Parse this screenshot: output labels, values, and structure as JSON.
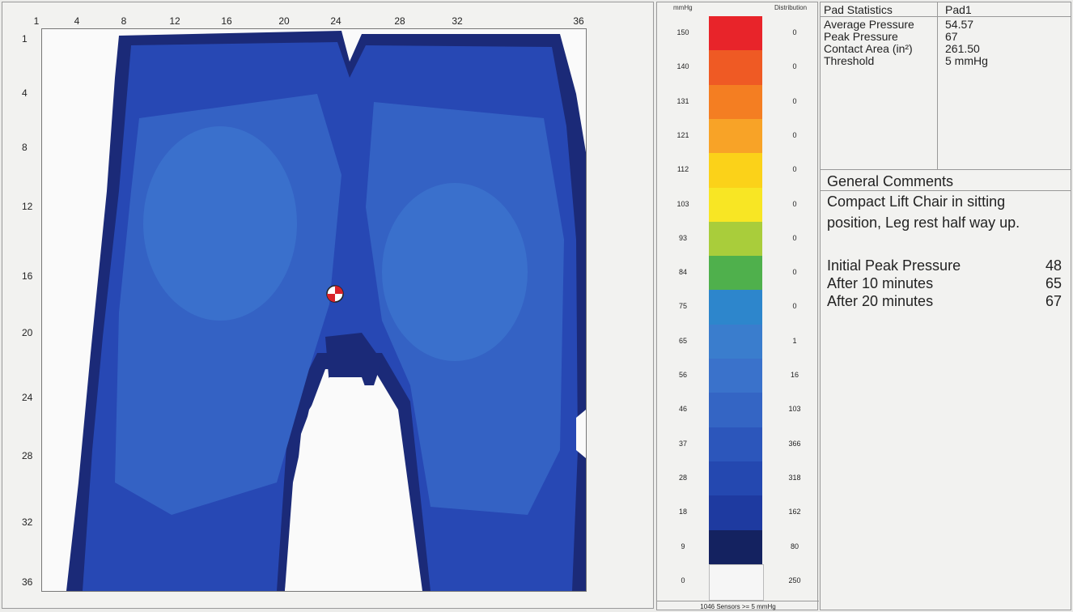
{
  "pressure_map": {
    "column_labels": [
      "1",
      "4",
      "8",
      "12",
      "16",
      "20",
      "24",
      "28",
      "32",
      "36"
    ],
    "row_labels": [
      "1",
      "4",
      "8",
      "12",
      "16",
      "20",
      "24",
      "28",
      "32",
      "36"
    ],
    "colors": {
      "background": "#fafafa",
      "very_low": "#1b2a78",
      "low": "#2748b4",
      "mid": "#3462c4",
      "mid_high": "#3a70cc",
      "marker_red": "#d8232a"
    }
  },
  "legend": {
    "unit_label": "mmHg",
    "distribution_label": "Distribution",
    "levels": [
      {
        "value": "150",
        "count": "0",
        "color": "#e8242a"
      },
      {
        "value": "140",
        "count": "0",
        "color": "#ef5a24"
      },
      {
        "value": "131",
        "count": "0",
        "color": "#f47e22"
      },
      {
        "value": "121",
        "count": "0",
        "color": "#f8a327"
      },
      {
        "value": "112",
        "count": "0",
        "color": "#fbd219"
      },
      {
        "value": "103",
        "count": "0",
        "color": "#f8e624"
      },
      {
        "value": "93",
        "count": "0",
        "color": "#a9cd3b"
      },
      {
        "value": "84",
        "count": "0",
        "color": "#4fb04c"
      },
      {
        "value": "75",
        "count": "0",
        "color": "#2d86cc"
      },
      {
        "value": "65",
        "count": "1",
        "color": "#3a7dcd"
      },
      {
        "value": "56",
        "count": "16",
        "color": "#3a72cb"
      },
      {
        "value": "46",
        "count": "103",
        "color": "#3465c4"
      },
      {
        "value": "37",
        "count": "366",
        "color": "#2c56bb"
      },
      {
        "value": "28",
        "count": "318",
        "color": "#2448b0"
      },
      {
        "value": "18",
        "count": "162",
        "color": "#1e3aa0"
      },
      {
        "value": "9",
        "count": "80",
        "color": "#142260"
      },
      {
        "value": "0",
        "count": "250",
        "color": "#f6f6f6"
      }
    ],
    "footer": "1046 Sensors >= 5 mmHg"
  },
  "stats": {
    "header_key": "Pad Statistics",
    "header_value": "Pad1",
    "rows": [
      {
        "key": "Average Pressure",
        "value": "54.57"
      },
      {
        "key": "Peak Pressure",
        "value": "67"
      },
      {
        "key": "Contact Area (in²)",
        "value": "261.50"
      },
      {
        "key": "Threshold",
        "value": "5 mmHg"
      }
    ]
  },
  "comments": {
    "title": "General Comments",
    "line1": "Compact Lift Chair in sitting",
    "line2": "position, Leg rest half way up.",
    "readings": [
      {
        "label": "Initial Peak Pressure",
        "value": "48"
      },
      {
        "label": "After 10 minutes",
        "value": "65"
      },
      {
        "label": "After 20 minutes",
        "value": "67"
      }
    ]
  }
}
